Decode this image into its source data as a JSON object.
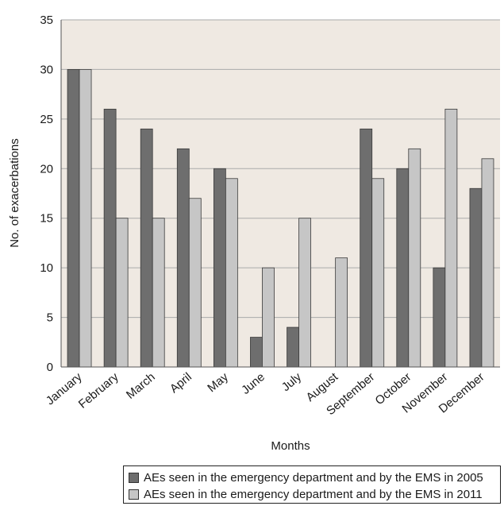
{
  "chart_data": {
    "type": "bar",
    "xlabel": "Months",
    "ylabel": "No. of exacerbations",
    "ylim": [
      0,
      35
    ],
    "yticks": [
      0,
      5,
      10,
      15,
      20,
      25,
      30,
      35
    ],
    "grid": true,
    "legend_position": "bottom",
    "categories": [
      "January",
      "February",
      "March",
      "April",
      "May",
      "June",
      "July",
      "August",
      "September",
      "October",
      "November",
      "December"
    ],
    "series": [
      {
        "name": "AEs seen in the emergency department and by the EMS in 2005",
        "values": [
          30,
          26,
          24,
          22,
          20,
          3,
          4,
          0,
          24,
          20,
          10,
          18
        ],
        "color": "#6e6e6e"
      },
      {
        "name": "AEs seen in the emergency department and by the EMS in 2011",
        "values": [
          30,
          15,
          15,
          17,
          19,
          10,
          15,
          11,
          19,
          22,
          26,
          21
        ],
        "color": "#c6c6c6"
      }
    ],
    "colors": {
      "plot_background": "#efe9e2",
      "gridline": "#aaaaaa"
    }
  }
}
